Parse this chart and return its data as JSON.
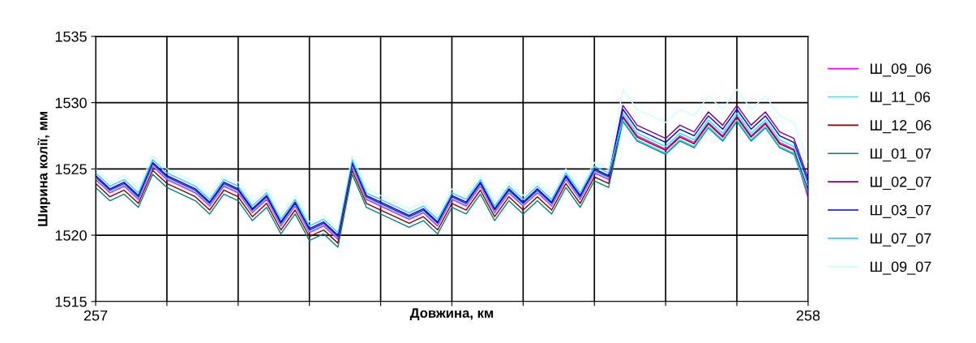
{
  "chart_data": {
    "type": "line",
    "xlabel": "Довжина, км",
    "ylabel": "Ширина колії, мм",
    "x": [
      257,
      257.02,
      257.04,
      257.06,
      257.08,
      257.1,
      257.12,
      257.14,
      257.16,
      257.18,
      257.2,
      257.22,
      257.24,
      257.26,
      257.28,
      257.3,
      257.32,
      257.34,
      257.36,
      257.38,
      257.4,
      257.42,
      257.44,
      257.46,
      257.48,
      257.5,
      257.52,
      257.54,
      257.56,
      257.58,
      257.6,
      257.62,
      257.64,
      257.66,
      257.68,
      257.7,
      257.72,
      257.74,
      257.76,
      257.78,
      257.8,
      257.82,
      257.84,
      257.86,
      257.88,
      257.9,
      257.92,
      257.94,
      257.96,
      257.98,
      258
    ],
    "xlim": [
      257,
      258
    ],
    "xticks": [
      257,
      {
        "value": 257.1,
        "label": null
      },
      {
        "value": 257.2,
        "label": null
      },
      {
        "value": 257.3,
        "label": null
      },
      {
        "value": 257.4,
        "label": null
      },
      {
        "value": 257.5,
        "label": null
      },
      {
        "value": 257.6,
        "label": null
      },
      {
        "value": 257.7,
        "label": null
      },
      {
        "value": 257.8,
        "label": null
      },
      {
        "value": 257.9,
        "label": null
      },
      258
    ],
    "ylim": [
      1515,
      1535
    ],
    "yticks": [
      1515,
      1520,
      1525,
      1530,
      1535
    ],
    "grid": true,
    "legend": "right",
    "marker": "none",
    "line_style": "solid",
    "series": [
      {
        "name": "Ш_09_06",
        "color": "#ff00ff",
        "values": [
          1524.2,
          1523.2,
          1523.7,
          1522.7,
          1525.2,
          1524.2,
          1523.7,
          1523.2,
          1522.2,
          1523.7,
          1523.2,
          1521.7,
          1522.7,
          1520.7,
          1522.2,
          1520.2,
          1520.7,
          1519.7,
          1525.2,
          1522.7,
          1522.2,
          1521.7,
          1521.2,
          1521.7,
          1520.7,
          1522.7,
          1522.2,
          1523.7,
          1521.7,
          1523.2,
          1522.2,
          1523.2,
          1522.2,
          1524.2,
          1522.7,
          1524.7,
          1524.2,
          1529,
          1527.5,
          1527,
          1526.5,
          1527.5,
          1527,
          1528.5,
          1527.5,
          1529,
          1527.5,
          1528.5,
          1527,
          1526.5,
          1522.8
        ]
      },
      {
        "name": "Ш_11_06",
        "color": "#00ffff",
        "values": [
          1524.3,
          1523.3,
          1523.8,
          1522.8,
          1525.3,
          1524.3,
          1523.8,
          1523.3,
          1522.3,
          1523.8,
          1523.3,
          1521.8,
          1522.8,
          1520.8,
          1522.3,
          1520.3,
          1520.8,
          1519.8,
          1525.3,
          1522.8,
          1522.3,
          1521.8,
          1521.3,
          1521.8,
          1520.8,
          1522.8,
          1522.3,
          1523.8,
          1521.8,
          1523.3,
          1522.3,
          1523.3,
          1522.3,
          1524.3,
          1522.8,
          1524.8,
          1524.3,
          1529.2,
          1527.7,
          1527.2,
          1526.7,
          1527.7,
          1527.2,
          1528.7,
          1527.7,
          1529.2,
          1527.7,
          1528.7,
          1527.2,
          1526.7,
          1523.7
        ]
      },
      {
        "name": "Ш_12_06",
        "color": "#800000",
        "values": [
          1523.9,
          1522.9,
          1523.4,
          1522.4,
          1524.9,
          1523.9,
          1523.4,
          1522.9,
          1521.9,
          1523.4,
          1522.9,
          1521.4,
          1522.4,
          1520.4,
          1521.9,
          1519.9,
          1520.4,
          1519.4,
          1524.9,
          1522.4,
          1521.9,
          1521.4,
          1520.9,
          1521.4,
          1520.4,
          1522.4,
          1521.9,
          1523.4,
          1521.4,
          1522.9,
          1521.9,
          1522.9,
          1521.9,
          1523.9,
          1522.4,
          1524.4,
          1523.9,
          1528.9,
          1527.4,
          1526.9,
          1526.4,
          1527.4,
          1526.9,
          1528.4,
          1527.4,
          1528.9,
          1527.4,
          1528.4,
          1526.9,
          1526.4,
          1523.4
        ]
      },
      {
        "name": "Ш_01_07",
        "color": "#008080",
        "values": [
          1523.6,
          1522.6,
          1523.1,
          1522.1,
          1524.6,
          1523.6,
          1523.1,
          1522.6,
          1521.6,
          1523.1,
          1522.6,
          1521.1,
          1522.1,
          1520.1,
          1521.6,
          1519.6,
          1520.1,
          1519.1,
          1524.6,
          1522.1,
          1521.6,
          1521.1,
          1520.6,
          1521.1,
          1520.1,
          1522.1,
          1521.6,
          1523.1,
          1521.1,
          1522.6,
          1521.6,
          1522.6,
          1521.6,
          1523.6,
          1522.1,
          1524.1,
          1523.6,
          1528.6,
          1527.1,
          1526.6,
          1526.1,
          1527.1,
          1526.6,
          1528.1,
          1527.1,
          1528.6,
          1527.1,
          1528.1,
          1526.6,
          1526.1,
          1523.1
        ]
      },
      {
        "name": "Ш_02_07",
        "color": "#800080",
        "values": [
          1524.4,
          1523.4,
          1523.9,
          1522.9,
          1525.4,
          1524.4,
          1523.9,
          1523.4,
          1522.4,
          1523.9,
          1523.4,
          1521.9,
          1522.9,
          1520.9,
          1522.4,
          1520.4,
          1520.9,
          1519.9,
          1525.4,
          1522.9,
          1522.4,
          1521.9,
          1521.4,
          1521.9,
          1520.9,
          1522.9,
          1522.4,
          1523.9,
          1521.9,
          1523.4,
          1522.4,
          1523.4,
          1522.4,
          1524.4,
          1522.9,
          1524.9,
          1524.4,
          1529.8,
          1528.3,
          1527.8,
          1527.3,
          1528.3,
          1527.8,
          1529.3,
          1528.3,
          1529.8,
          1528.3,
          1529.3,
          1527.8,
          1527.3,
          1524.3
        ]
      },
      {
        "name": "Ш_03_07",
        "color": "#0000ff",
        "values": [
          1524.5,
          1523.5,
          1524,
          1523,
          1525.5,
          1524.5,
          1524,
          1523.5,
          1522.5,
          1524,
          1523.5,
          1522,
          1523,
          1521,
          1522.5,
          1520.5,
          1521,
          1520,
          1525.5,
          1523,
          1522.5,
          1522,
          1521.5,
          1522,
          1521,
          1523,
          1522.5,
          1524,
          1522,
          1523.5,
          1522.5,
          1523.5,
          1522.5,
          1524.5,
          1523,
          1525,
          1524.5,
          1529.5,
          1528,
          1527.5,
          1527,
          1528,
          1527.5,
          1529,
          1528,
          1529.5,
          1528,
          1529,
          1527.5,
          1527,
          1524
        ]
      },
      {
        "name": "Ш_07_07",
        "color": "#33ccff",
        "values": [
          1524.7,
          1523.7,
          1524.2,
          1523.2,
          1525.7,
          1524.7,
          1524.2,
          1523.7,
          1522.7,
          1524.2,
          1523.7,
          1522.2,
          1523.2,
          1521.2,
          1522.7,
          1520.7,
          1521.2,
          1520.2,
          1525.7,
          1523.2,
          1522.7,
          1522.2,
          1521.7,
          1522.2,
          1521.2,
          1523.2,
          1522.7,
          1524.2,
          1522.2,
          1523.7,
          1522.7,
          1523.7,
          1522.7,
          1524.7,
          1523.2,
          1525.2,
          1524.7,
          1528.7,
          1527.2,
          1526.7,
          1526.2,
          1527.2,
          1526.7,
          1528.2,
          1527.2,
          1528.7,
          1527.2,
          1528.2,
          1526.7,
          1526.2,
          1523.2
        ]
      },
      {
        "name": "Ш_09_07",
        "color": "#ccffff",
        "values": [
          1525,
          1524,
          1524.5,
          1523.5,
          1526,
          1525,
          1524.5,
          1524,
          1523,
          1524.5,
          1524,
          1522.5,
          1523.5,
          1521.5,
          1523,
          1521,
          1521.5,
          1520.5,
          1526,
          1523.5,
          1523,
          1522.5,
          1522,
          1522.5,
          1521.5,
          1523.5,
          1523,
          1524.5,
          1522.5,
          1524,
          1523,
          1524,
          1523,
          1525,
          1523.5,
          1525.5,
          1525,
          1531,
          1529.5,
          1529,
          1528.5,
          1529.5,
          1529,
          1530.5,
          1529.5,
          1531,
          1529.5,
          1530.5,
          1529,
          1528.5,
          1525.5
        ]
      }
    ]
  }
}
